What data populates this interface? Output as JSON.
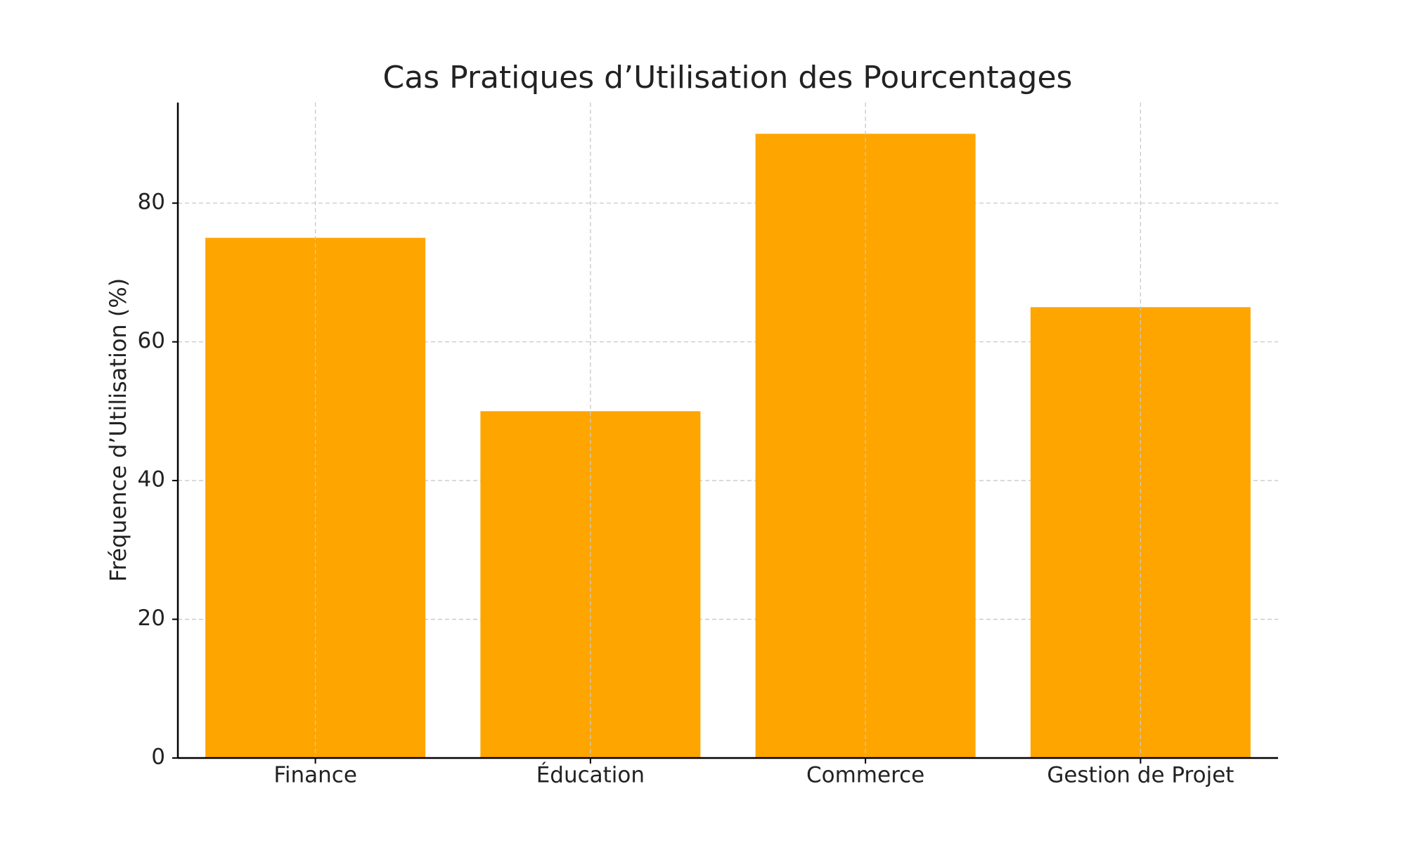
{
  "chart_data": {
    "type": "bar",
    "title": "Cas Pratiques d’Utilisation des Pourcentages",
    "y_label": "Fréquence d’Utilisation (%)",
    "categories": [
      "Finance",
      "Éducation",
      "Commerce",
      "Gestion de Projet"
    ],
    "values": [
      75,
      50,
      90,
      65
    ],
    "color": "#ffa500",
    "ylim": [
      0,
      94.5
    ],
    "yticks": [
      0,
      20,
      40,
      60,
      80
    ],
    "grid": true
  }
}
